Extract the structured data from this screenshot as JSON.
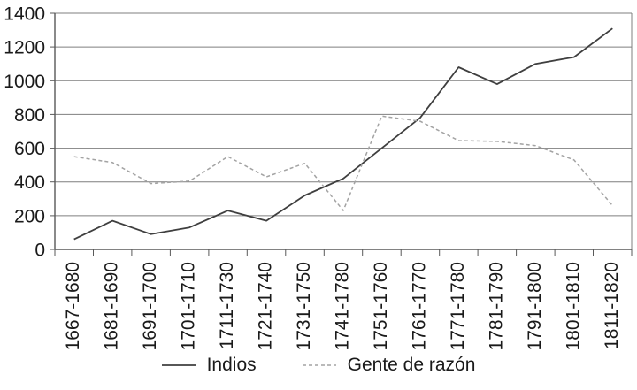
{
  "chart_data": {
    "type": "line",
    "title": "",
    "xlabel": "",
    "ylabel": "",
    "categories": [
      "1667-1680",
      "1681-1690",
      "1691-1700",
      "1701-1710",
      "1711-1730",
      "1721-1740",
      "1731-1750",
      "1741-1780",
      "1751-1760",
      "1761-1770",
      "1771-1780",
      "1781-1790",
      "1791-1800",
      "1801-1810",
      "1811-1820"
    ],
    "series": [
      {
        "id": "indios",
        "name": "Indios",
        "color": "#3f3f3f",
        "dash": "none",
        "values": [
          60,
          170,
          90,
          130,
          230,
          170,
          320,
          420,
          600,
          780,
          1080,
          980,
          1100,
          1140,
          1310
        ]
      },
      {
        "id": "gente-de-razon",
        "name": "Gente de razón",
        "color": "#a3a3a3",
        "dash": "4 3",
        "values": [
          550,
          515,
          390,
          405,
          550,
          430,
          510,
          230,
          790,
          760,
          645,
          640,
          615,
          530,
          260
        ]
      }
    ],
    "ylim": [
      0,
      1400
    ],
    "ytick_step": 200,
    "ytick_labels": [
      "0",
      "200",
      "400",
      "600",
      "800",
      "1000",
      "1200",
      "1400"
    ],
    "grid": "horizontal",
    "legend_position": "bottom",
    "colors": {
      "grid": "#7f7f7f",
      "axis": "#595959",
      "text": "#1a1a1a",
      "background": "#ffffff"
    }
  }
}
